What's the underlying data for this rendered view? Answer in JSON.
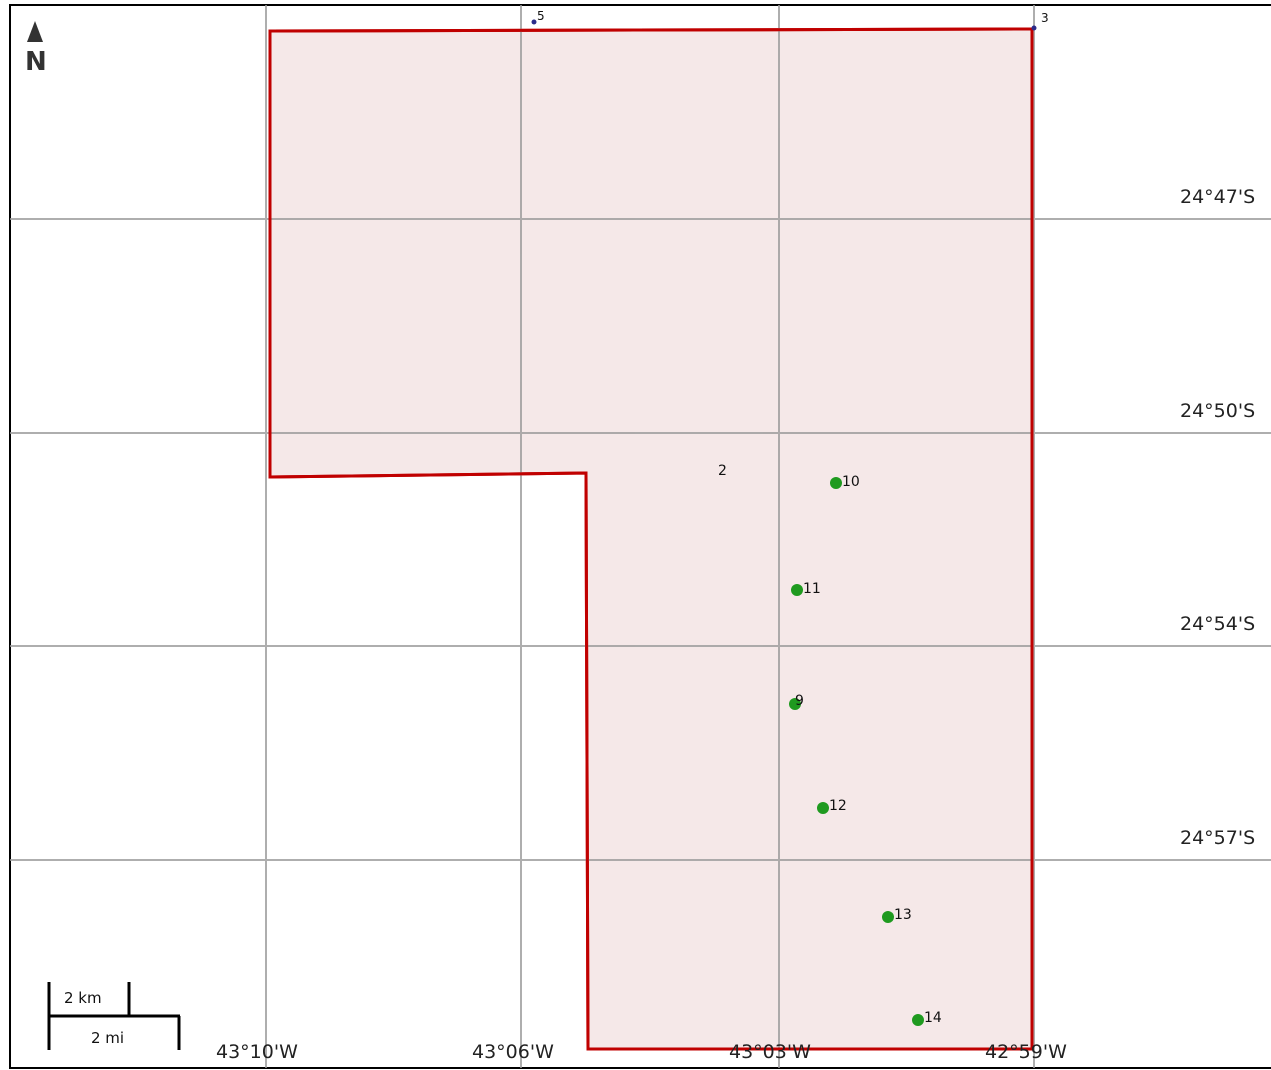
{
  "map": {
    "lat_labels": [
      "24°47'S",
      "24°50'S",
      "24°54'S",
      "24°57'S"
    ],
    "lon_labels": [
      "43°10'W",
      "43°06'W",
      "43°03'W",
      "42°59'W"
    ],
    "north_arrow": {
      "icon": "north-arrow-icon",
      "label": "N"
    },
    "scale_bar": {
      "km_label": "2 km",
      "mi_label": "2 mi"
    },
    "polygon": {
      "stroke_color": "#c00000",
      "fill_color": "#f5e8e8",
      "label": "2"
    },
    "corner_points": [
      {
        "label": "5",
        "icon": "vertex-marker-icon"
      },
      {
        "label": "3",
        "icon": "vertex-marker-icon"
      }
    ],
    "sample_points": [
      {
        "label": "10",
        "color": "#1f9a1f",
        "icon": "point-marker-icon"
      },
      {
        "label": "11",
        "color": "#1f9a1f",
        "icon": "point-marker-icon"
      },
      {
        "label": "9",
        "color": "#1f9a1f",
        "icon": "point-marker-icon"
      },
      {
        "label": "12",
        "color": "#1f9a1f",
        "icon": "point-marker-icon"
      },
      {
        "label": "13",
        "color": "#1f9a1f",
        "icon": "point-marker-icon"
      },
      {
        "label": "14",
        "color": "#1f9a1f",
        "icon": "point-marker-icon"
      }
    ]
  }
}
